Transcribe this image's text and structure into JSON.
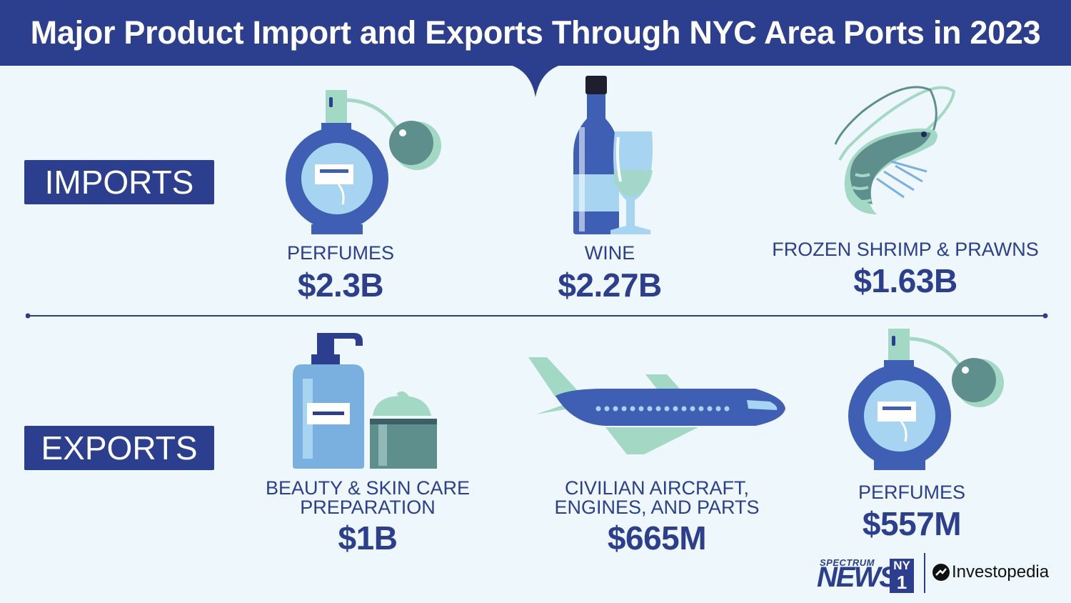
{
  "header": {
    "title": "Major Product Import and Exports Through NYC Area Ports in 2023"
  },
  "imports": {
    "label": "IMPORTS",
    "items": [
      {
        "name": "PERFUMES",
        "value": "$2.3B",
        "icon": "perfume-bottle-icon"
      },
      {
        "name": "WINE",
        "value": "$2.27B",
        "icon": "wine-bottle-glass-icon"
      },
      {
        "name": "FROZEN SHRIMP & PRAWNS",
        "value": "$1.63B",
        "icon": "shrimp-icon"
      }
    ]
  },
  "exports": {
    "label": "EXPORTS",
    "items": [
      {
        "name_line1": "BEAUTY & SKIN CARE",
        "name_line2": "PREPARATION",
        "value": "$1B",
        "icon": "lotion-cream-icon"
      },
      {
        "name_line1": "CIVILIAN AIRCRAFT,",
        "name_line2": "ENGINES, AND PARTS",
        "value": "$665M",
        "icon": "airplane-icon"
      },
      {
        "name": "PERFUMES",
        "value": "$557M",
        "icon": "perfume-bottle-icon"
      }
    ]
  },
  "logos": {
    "spectrum_top": "SPECTRUM",
    "spectrum_news": "NEWS",
    "ny": "NY",
    "one": "1",
    "investopedia": "Investopedia"
  },
  "colors": {
    "navy": "#2c3f8f",
    "blue": "#3e5fb4",
    "light_blue": "#a7d4f0",
    "mint": "#a3d8c4",
    "teal": "#5f8f8d",
    "background": "#eef7fb"
  }
}
